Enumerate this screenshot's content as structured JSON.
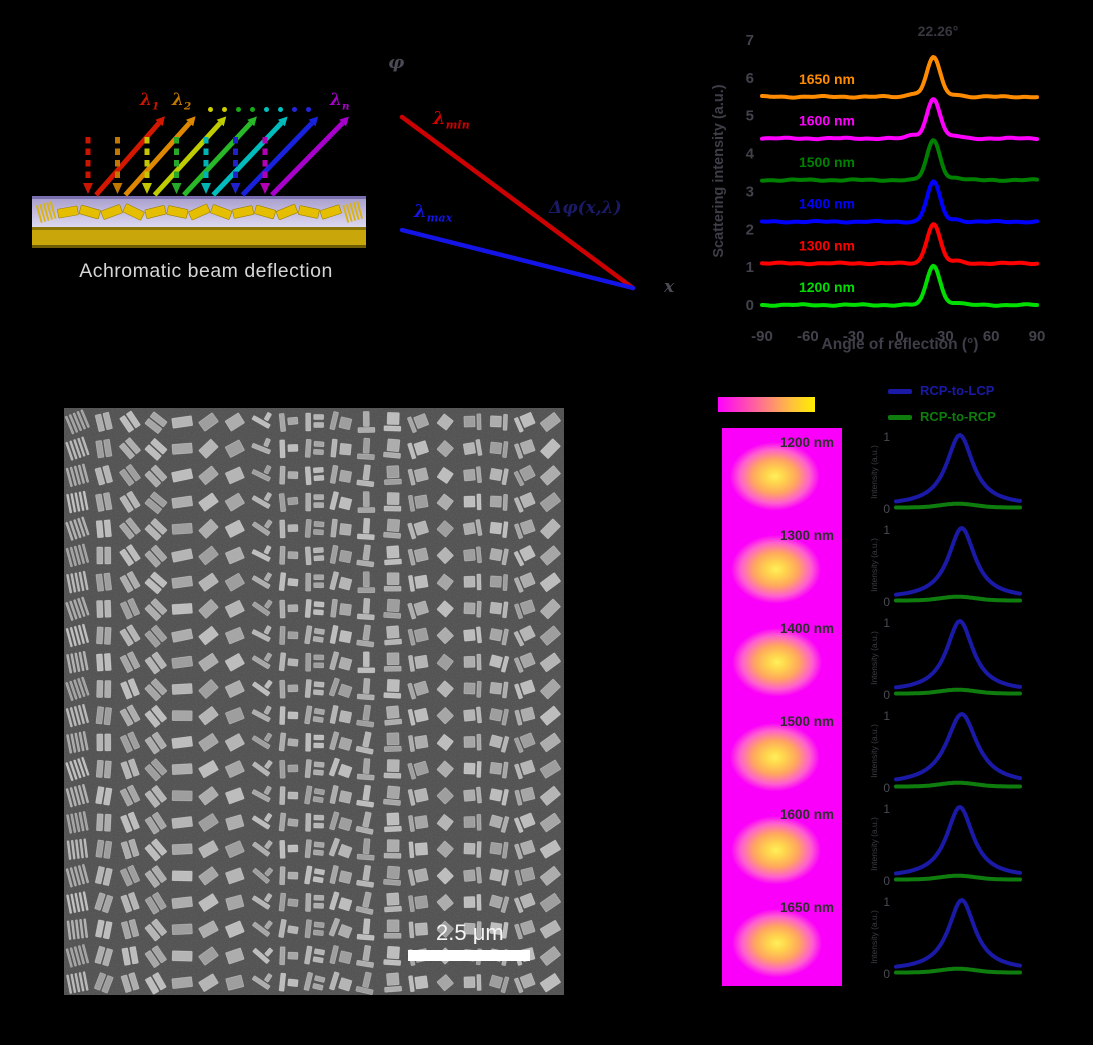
{
  "figure": {
    "background": "#000000"
  },
  "panel_a": {
    "caption": "Achromatic  beam deflection",
    "lambda_first": {
      "base": "λ",
      "sub": "1",
      "color": "#cc1500"
    },
    "lambda_second": {
      "base": "λ",
      "sub": "2",
      "color": "#c07800"
    },
    "lambda_n": {
      "base": "λ",
      "sub": "n",
      "color": "#a800cc"
    },
    "dot_colors": [
      "#cfcf00",
      "#cfcf00",
      "#18a818",
      "#18a818",
      "#00bfbf",
      "#00bfbf",
      "#2525dd",
      "#2525dd"
    ],
    "incident_colors": [
      "#cc1500",
      "#c07800",
      "#c6c600",
      "#28a828",
      "#00b4b4",
      "#2020cc",
      "#b400b4"
    ],
    "reflected_colors": [
      "#d41800",
      "#dd8800",
      "#bfcc00",
      "#28b828",
      "#00bcbc",
      "#1822dd",
      "#a800cc"
    ],
    "substrate": {
      "surface_color": "#b2a9d4",
      "gold_color": "#c9a70b",
      "rod_color": "#e6be00"
    }
  },
  "panel_b": {
    "y_axis_label": "φ",
    "x_axis_label": "x",
    "line_min": {
      "base": "λ",
      "sub": "min",
      "color": "#cc0000"
    },
    "line_max": {
      "base": "λ",
      "sub": "max",
      "color": "#1414e6"
    },
    "annotation": "Δφ(x,λ)",
    "annotation_color": "#1a1a66"
  },
  "panel_d": {
    "scale_bar_label": "2.5 μm"
  },
  "panel_e": {
    "legend": [
      {
        "label": "RCP-to-LCP",
        "color": "#1a1aa6"
      },
      {
        "label": "RCP-to-RCP",
        "color": "#0e7d0e"
      }
    ],
    "cells": [
      "1200 nm",
      "1300 nm",
      "1400 nm",
      "1500 nm",
      "1600 nm",
      "1650 nm"
    ],
    "plot": {
      "ylabel": "Intensity (a.u.)",
      "ytick_top": "1",
      "ytick_bottom": "0"
    }
  },
  "chart_data": [
    {
      "type": "line",
      "panel": "c",
      "title": "22.26°",
      "xlabel": "Angle of reflection (°)",
      "ylabel": "Scattering intensity (a.u.)",
      "xlim": [
        -90,
        90
      ],
      "ylim": [
        0,
        7
      ],
      "xticks": [
        -90,
        -60,
        -30,
        0,
        30,
        60,
        90
      ],
      "yticks": [
        0,
        1,
        2,
        3,
        4,
        5,
        6,
        7
      ],
      "peak_center_deg": 22.26,
      "peak_height": 1.05,
      "peak_sigma_deg": 4.3,
      "grid": false,
      "series": [
        {
          "label": "1200 nm",
          "color": "#00dd00",
          "baseline_offset": 0.0
        },
        {
          "label": "1300 nm",
          "color": "#ff0000",
          "baseline_offset": 1.1
        },
        {
          "label": "1400 nm",
          "color": "#0000ff",
          "baseline_offset": 2.2
        },
        {
          "label": "1500 nm",
          "color": "#008000",
          "baseline_offset": 3.3
        },
        {
          "label": "1600 nm",
          "color": "#ff00ff",
          "baseline_offset": 4.4
        },
        {
          "label": "1650 nm",
          "color": "#ff8c00",
          "baseline_offset": 5.5
        }
      ]
    },
    {
      "type": "line",
      "panel": "e",
      "ylabel": "Intensity (a.u.)",
      "ylim": [
        0,
        1
      ],
      "wavelengths": [
        "1200 nm",
        "1300 nm",
        "1400 nm",
        "1500 nm",
        "1600 nm",
        "1650 nm"
      ],
      "series": [
        {
          "name": "RCP-to-LCP",
          "color": "#1a1aa6",
          "peak_value": 1.0,
          "peak_position_frac": 0.52,
          "lorentz_width_frac": 0.13
        },
        {
          "name": "RCP-to-RCP",
          "color": "#0e7d0e",
          "peak_value": 0.08,
          "baseline": 0.02
        }
      ],
      "colormap": {
        "low_color": "#ff00ff",
        "high_color": "#ffee00"
      }
    }
  ]
}
